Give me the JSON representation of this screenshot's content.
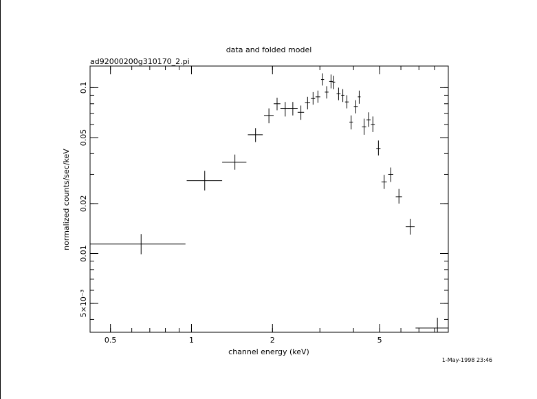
{
  "chart_data": {
    "type": "scatter",
    "title": "data and folded model",
    "subtitle": "ad92000200g310170_2.pi",
    "xlabel": "channel energy (keV)",
    "ylabel": "normalized counts/sec/keV",
    "x_scale": "log",
    "y_scale": "log",
    "xlim": [
      0.42,
      9.0
    ],
    "ylim": [
      0.00335,
      0.135
    ],
    "x_ticks": [
      {
        "value": 0.5,
        "label": "0.5"
      },
      {
        "value": 1,
        "label": "1"
      },
      {
        "value": 2,
        "label": "2"
      },
      {
        "value": 5,
        "label": "5"
      }
    ],
    "y_ticks": [
      {
        "value": 0.1,
        "label": "0.1"
      },
      {
        "value": 0.05,
        "label": "0.05"
      },
      {
        "value": 0.02,
        "label": "0.02"
      },
      {
        "value": 0.01,
        "label": "0.01"
      },
      {
        "value": 0.005,
        "label": "5×10⁻³"
      }
    ],
    "grid": false,
    "series": [
      {
        "color": "#000000",
        "points": [
          {
            "x": 0.65,
            "xlo": 0.42,
            "xhi": 0.95,
            "y": 0.0114,
            "ylo": 0.0099,
            "yhi": 0.0131
          },
          {
            "x": 1.12,
            "xlo": 0.96,
            "xhi": 1.3,
            "y": 0.0275,
            "ylo": 0.024,
            "yhi": 0.0315
          },
          {
            "x": 1.45,
            "xlo": 1.3,
            "xhi": 1.6,
            "y": 0.0355,
            "ylo": 0.032,
            "yhi": 0.0395
          },
          {
            "x": 1.73,
            "xlo": 1.62,
            "xhi": 1.84,
            "y": 0.052,
            "ylo": 0.047,
            "yhi": 0.057
          },
          {
            "x": 1.94,
            "xlo": 1.86,
            "xhi": 2.02,
            "y": 0.068,
            "ylo": 0.061,
            "yhi": 0.075
          },
          {
            "x": 2.08,
            "xlo": 2.02,
            "xhi": 2.14,
            "y": 0.08,
            "ylo": 0.073,
            "yhi": 0.087
          },
          {
            "x": 2.23,
            "xlo": 2.14,
            "xhi": 2.32,
            "y": 0.075,
            "ylo": 0.067,
            "yhi": 0.082
          },
          {
            "x": 2.38,
            "xlo": 2.28,
            "xhi": 2.48,
            "y": 0.075,
            "ylo": 0.068,
            "yhi": 0.082
          },
          {
            "x": 2.55,
            "xlo": 2.48,
            "xhi": 2.62,
            "y": 0.071,
            "ylo": 0.064,
            "yhi": 0.078
          },
          {
            "x": 2.7,
            "xlo": 2.64,
            "xhi": 2.76,
            "y": 0.081,
            "ylo": 0.074,
            "yhi": 0.088
          },
          {
            "x": 2.83,
            "xlo": 2.78,
            "xhi": 2.88,
            "y": 0.086,
            "ylo": 0.079,
            "yhi": 0.094
          },
          {
            "x": 2.95,
            "xlo": 2.89,
            "xhi": 3.01,
            "y": 0.088,
            "ylo": 0.081,
            "yhi": 0.096
          },
          {
            "x": 3.07,
            "xlo": 3.03,
            "xhi": 3.11,
            "y": 0.112,
            "ylo": 0.103,
            "yhi": 0.122
          },
          {
            "x": 3.18,
            "xlo": 3.13,
            "xhi": 3.23,
            "y": 0.094,
            "ylo": 0.086,
            "yhi": 0.102
          },
          {
            "x": 3.3,
            "xlo": 3.25,
            "xhi": 3.35,
            "y": 0.109,
            "ylo": 0.099,
            "yhi": 0.12
          },
          {
            "x": 3.38,
            "xlo": 3.34,
            "xhi": 3.42,
            "y": 0.108,
            "ylo": 0.098,
            "yhi": 0.118
          },
          {
            "x": 3.52,
            "xlo": 3.46,
            "xhi": 3.58,
            "y": 0.092,
            "ylo": 0.084,
            "yhi": 0.1
          },
          {
            "x": 3.65,
            "xlo": 3.6,
            "xhi": 3.7,
            "y": 0.09,
            "ylo": 0.082,
            "yhi": 0.098
          },
          {
            "x": 3.78,
            "xlo": 3.72,
            "xhi": 3.84,
            "y": 0.082,
            "ylo": 0.075,
            "yhi": 0.09
          },
          {
            "x": 3.92,
            "xlo": 3.86,
            "xhi": 3.98,
            "y": 0.062,
            "ylo": 0.056,
            "yhi": 0.068
          },
          {
            "x": 4.08,
            "xlo": 4.01,
            "xhi": 4.15,
            "y": 0.077,
            "ylo": 0.07,
            "yhi": 0.084
          },
          {
            "x": 4.2,
            "xlo": 4.15,
            "xhi": 4.25,
            "y": 0.088,
            "ylo": 0.08,
            "yhi": 0.096
          },
          {
            "x": 4.38,
            "xlo": 4.3,
            "xhi": 4.46,
            "y": 0.058,
            "ylo": 0.052,
            "yhi": 0.065
          },
          {
            "x": 4.55,
            "xlo": 4.47,
            "xhi": 4.63,
            "y": 0.064,
            "ylo": 0.058,
            "yhi": 0.071
          },
          {
            "x": 4.72,
            "xlo": 4.64,
            "xhi": 4.8,
            "y": 0.06,
            "ylo": 0.054,
            "yhi": 0.067
          },
          {
            "x": 4.95,
            "xlo": 4.86,
            "xhi": 5.04,
            "y": 0.043,
            "ylo": 0.039,
            "yhi": 0.048
          },
          {
            "x": 5.2,
            "xlo": 5.08,
            "xhi": 5.32,
            "y": 0.027,
            "ylo": 0.0245,
            "yhi": 0.0298
          },
          {
            "x": 5.5,
            "xlo": 5.38,
            "xhi": 5.62,
            "y": 0.03,
            "ylo": 0.027,
            "yhi": 0.033
          },
          {
            "x": 5.9,
            "xlo": 5.74,
            "xhi": 6.06,
            "y": 0.022,
            "ylo": 0.02,
            "yhi": 0.0245
          },
          {
            "x": 6.5,
            "xlo": 6.25,
            "xhi": 6.75,
            "y": 0.0145,
            "ylo": 0.013,
            "yhi": 0.0162
          },
          {
            "x": 8.2,
            "xlo": 6.8,
            "xhi": 9.0,
            "y": 0.00355,
            "ylo": 0.00315,
            "yhi": 0.0041
          }
        ]
      }
    ]
  },
  "timestamp": "1-May-1998 23:46"
}
